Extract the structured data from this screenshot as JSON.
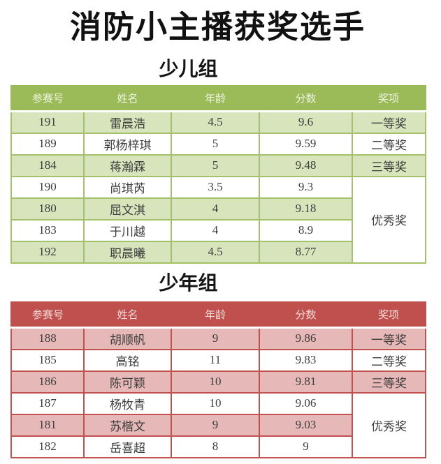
{
  "title": "消防小主播获奖选手",
  "columns": [
    "参赛号",
    "姓名",
    "年龄",
    "分数",
    "奖项"
  ],
  "theme_colors": {
    "green_header": "#9bbb59",
    "green_row": "#d7e4bc",
    "red_header": "#c0504d",
    "red_row": "#e6b9b8"
  },
  "groups": [
    {
      "heading": "少儿组",
      "theme": "green",
      "rows": [
        {
          "id": "191",
          "name": "雷晨浩",
          "age": "4.5",
          "score": "9.6",
          "award": "一等奖"
        },
        {
          "id": "189",
          "name": "郭杨梓琪",
          "age": "5",
          "score": "9.59",
          "award": "二等奖"
        },
        {
          "id": "184",
          "name": "蒋瀚霖",
          "age": "5",
          "score": "9.48",
          "award": "三等奖"
        },
        {
          "id": "190",
          "name": "尚琪芮",
          "age": "3.5",
          "score": "9.3"
        },
        {
          "id": "180",
          "name": "屈文淇",
          "age": "4",
          "score": "9.18"
        },
        {
          "id": "183",
          "name": "于川越",
          "age": "4",
          "score": "8.9"
        },
        {
          "id": "192",
          "name": "职晨曦",
          "age": "4.5",
          "score": "8.77"
        }
      ],
      "merged_award": {
        "label": "优秀奖",
        "start_index": 3,
        "rowspan": 4
      }
    },
    {
      "heading": "少年组",
      "theme": "red",
      "rows": [
        {
          "id": "188",
          "name": "胡顺帆",
          "age": "9",
          "score": "9.86",
          "award": "一等奖"
        },
        {
          "id": "185",
          "name": "高铭",
          "age": "11",
          "score": "9.83",
          "award": "二等奖"
        },
        {
          "id": "186",
          "name": "陈可颖",
          "age": "10",
          "score": "9.81",
          "award": "三等奖"
        },
        {
          "id": "187",
          "name": "杨牧青",
          "age": "10",
          "score": "9.06"
        },
        {
          "id": "181",
          "name": "苏楷文",
          "age": "9",
          "score": "9.03"
        },
        {
          "id": "182",
          "name": "岳喜超",
          "age": "8",
          "score": "9"
        }
      ],
      "merged_award": {
        "label": "优秀奖",
        "start_index": 3,
        "rowspan": 3
      }
    }
  ]
}
